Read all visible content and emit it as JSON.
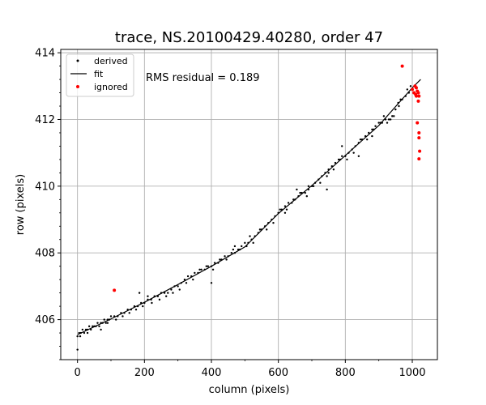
{
  "chart_data": {
    "type": "scatter",
    "title": "trace, NS.20100429.40280, order 47",
    "xlabel": "column (pixels)",
    "ylabel": "row (pixels)",
    "xlim": [
      -50,
      1075
    ],
    "ylim": [
      404.8,
      414.1
    ],
    "x_ticks": [
      0,
      200,
      400,
      600,
      800,
      1000
    ],
    "y_ticks": [
      406,
      408,
      410,
      412,
      414
    ],
    "y_minor_step": 0.4,
    "x_minor_step": 100,
    "grid": true,
    "legend_position": "top-left",
    "annotation": "RMS residual = 0.189",
    "colors": {
      "derived": "#000000",
      "fit": "#000000",
      "ignored": "#ff0000",
      "grid": "#b0b0b0"
    },
    "series": [
      {
        "name": "derived",
        "style": "points",
        "points": [
          [
            0,
            405.5
          ],
          [
            5,
            405.6
          ],
          [
            10,
            405.6
          ],
          [
            15,
            405.7
          ],
          [
            20,
            405.6
          ],
          [
            25,
            405.7
          ],
          [
            30,
            405.7
          ],
          [
            35,
            405.8
          ],
          [
            40,
            405.7
          ],
          [
            45,
            405.8
          ],
          [
            50,
            405.8
          ],
          [
            55,
            405.8
          ],
          [
            60,
            405.9
          ],
          [
            65,
            405.8
          ],
          [
            70,
            405.9
          ],
          [
            75,
            405.9
          ],
          [
            80,
            406.0
          ],
          [
            85,
            405.9
          ],
          [
            90,
            406.0
          ],
          [
            95,
            406.0
          ],
          [
            100,
            406.1
          ],
          [
            110,
            406.1
          ],
          [
            120,
            406.1
          ],
          [
            130,
            406.2
          ],
          [
            140,
            406.2
          ],
          [
            150,
            406.3
          ],
          [
            160,
            406.3
          ],
          [
            170,
            406.4
          ],
          [
            180,
            406.4
          ],
          [
            190,
            406.5
          ],
          [
            200,
            406.5
          ],
          [
            210,
            406.6
          ],
          [
            220,
            406.6
          ],
          [
            230,
            406.7
          ],
          [
            240,
            406.7
          ],
          [
            250,
            406.8
          ],
          [
            260,
            406.8
          ],
          [
            270,
            406.8
          ],
          [
            280,
            406.9
          ],
          [
            290,
            407.0
          ],
          [
            300,
            407.0
          ],
          [
            310,
            407.1
          ],
          [
            320,
            407.2
          ],
          [
            330,
            407.3
          ],
          [
            340,
            407.3
          ],
          [
            350,
            407.4
          ],
          [
            360,
            407.4
          ],
          [
            370,
            407.5
          ],
          [
            380,
            407.5
          ],
          [
            390,
            407.6
          ],
          [
            400,
            407.6
          ],
          [
            410,
            407.7
          ],
          [
            420,
            407.7
          ],
          [
            430,
            407.8
          ],
          [
            440,
            407.9
          ],
          [
            450,
            407.9
          ],
          [
            460,
            408.0
          ],
          [
            470,
            408.0
          ],
          [
            480,
            408.1
          ],
          [
            490,
            408.2
          ],
          [
            500,
            408.3
          ],
          [
            510,
            408.3
          ],
          [
            520,
            408.4
          ],
          [
            530,
            408.5
          ],
          [
            540,
            408.6
          ],
          [
            550,
            408.7
          ],
          [
            560,
            408.8
          ],
          [
            570,
            408.9
          ],
          [
            580,
            409.0
          ],
          [
            590,
            409.1
          ],
          [
            600,
            409.2
          ],
          [
            610,
            409.3
          ],
          [
            620,
            409.4
          ],
          [
            630,
            409.5
          ],
          [
            640,
            409.5
          ],
          [
            650,
            409.6
          ],
          [
            660,
            409.7
          ],
          [
            670,
            409.8
          ],
          [
            680,
            409.8
          ],
          [
            690,
            409.9
          ],
          [
            700,
            410.0
          ],
          [
            710,
            410.1
          ],
          [
            720,
            410.2
          ],
          [
            730,
            410.3
          ],
          [
            740,
            410.4
          ],
          [
            750,
            410.5
          ],
          [
            760,
            410.6
          ],
          [
            770,
            410.7
          ],
          [
            780,
            410.8
          ],
          [
            790,
            410.9
          ],
          [
            800,
            410.9
          ],
          [
            810,
            411.0
          ],
          [
            820,
            411.1
          ],
          [
            830,
            411.2
          ],
          [
            840,
            411.3
          ],
          [
            850,
            411.4
          ],
          [
            860,
            411.5
          ],
          [
            870,
            411.6
          ],
          [
            880,
            411.7
          ],
          [
            890,
            411.8
          ],
          [
            900,
            411.9
          ],
          [
            910,
            411.9
          ],
          [
            920,
            412.0
          ],
          [
            930,
            412.0
          ],
          [
            940,
            412.1
          ],
          [
            950,
            412.3
          ],
          [
            960,
            412.4
          ],
          [
            970,
            412.6
          ],
          [
            980,
            412.7
          ],
          [
            990,
            412.8
          ],
          [
            1000,
            412.9
          ],
          [
            1010,
            413.0
          ],
          [
            0,
            405.1
          ],
          [
            8,
            405.5
          ],
          [
            30,
            405.6
          ],
          [
            70,
            405.7
          ],
          [
            90,
            405.9
          ],
          [
            115,
            406.0
          ],
          [
            135,
            406.1
          ],
          [
            155,
            406.2
          ],
          [
            175,
            406.3
          ],
          [
            195,
            406.4
          ],
          [
            210,
            406.7
          ],
          [
            222,
            406.5
          ],
          [
            245,
            406.6
          ],
          [
            265,
            406.7
          ],
          [
            285,
            406.8
          ],
          [
            305,
            406.9
          ],
          [
            325,
            407.1
          ],
          [
            345,
            407.2
          ],
          [
            365,
            407.5
          ],
          [
            385,
            407.6
          ],
          [
            405,
            407.5
          ],
          [
            425,
            407.8
          ],
          [
            445,
            407.8
          ],
          [
            465,
            408.1
          ],
          [
            485,
            408.1
          ],
          [
            505,
            408.2
          ],
          [
            525,
            408.3
          ],
          [
            545,
            408.7
          ],
          [
            565,
            408.7
          ],
          [
            585,
            408.9
          ],
          [
            605,
            409.3
          ],
          [
            625,
            409.3
          ],
          [
            645,
            409.6
          ],
          [
            665,
            409.8
          ],
          [
            685,
            409.7
          ],
          [
            705,
            410.0
          ],
          [
            725,
            410.1
          ],
          [
            745,
            410.3
          ],
          [
            765,
            410.5
          ],
          [
            785,
            410.8
          ],
          [
            805,
            410.8
          ],
          [
            825,
            411.0
          ],
          [
            845,
            411.4
          ],
          [
            865,
            411.4
          ],
          [
            885,
            411.7
          ],
          [
            905,
            411.9
          ],
          [
            925,
            411.9
          ],
          [
            945,
            412.1
          ],
          [
            965,
            412.6
          ],
          [
            985,
            412.9
          ],
          [
            995,
            413.0
          ],
          [
            185,
            406.8
          ],
          [
            400,
            407.1
          ],
          [
            655,
            409.9
          ],
          [
            745,
            409.9
          ],
          [
            750,
            410.4
          ],
          [
            790,
            411.2
          ],
          [
            840,
            410.9
          ],
          [
            880,
            411.5
          ],
          [
            915,
            412.1
          ],
          [
            935,
            412.0
          ],
          [
            958,
            412.5
          ],
          [
            620,
            409.2
          ],
          [
            690,
            410.0
          ],
          [
            470,
            408.2
          ],
          [
            515,
            408.5
          ]
        ]
      },
      {
        "name": "fit",
        "style": "line",
        "points": [
          [
            0,
            405.55
          ],
          [
            100,
            406.02
          ],
          [
            200,
            406.52
          ],
          [
            300,
            407.05
          ],
          [
            400,
            407.6
          ],
          [
            500,
            408.18
          ],
          [
            600,
            409.18
          ],
          [
            700,
            410.02
          ],
          [
            800,
            410.92
          ],
          [
            900,
            411.82
          ],
          [
            1000,
            412.95
          ],
          [
            1025,
            413.2
          ]
        ]
      },
      {
        "name": "ignored",
        "style": "points",
        "points": [
          [
            110,
            406.88
          ],
          [
            970,
            413.6
          ],
          [
            1000,
            412.9
          ],
          [
            1005,
            412.8
          ],
          [
            1008,
            413.0
          ],
          [
            1010,
            412.75
          ],
          [
            1012,
            412.95
          ],
          [
            1015,
            412.85
          ],
          [
            1018,
            412.8
          ],
          [
            1020,
            412.7
          ],
          [
            1015,
            411.9
          ],
          [
            1020,
            411.6
          ],
          [
            1020,
            411.45
          ],
          [
            1022,
            411.05
          ],
          [
            1020,
            410.82
          ],
          [
            1018,
            412.55
          ],
          [
            1012,
            412.7
          ]
        ]
      }
    ]
  }
}
